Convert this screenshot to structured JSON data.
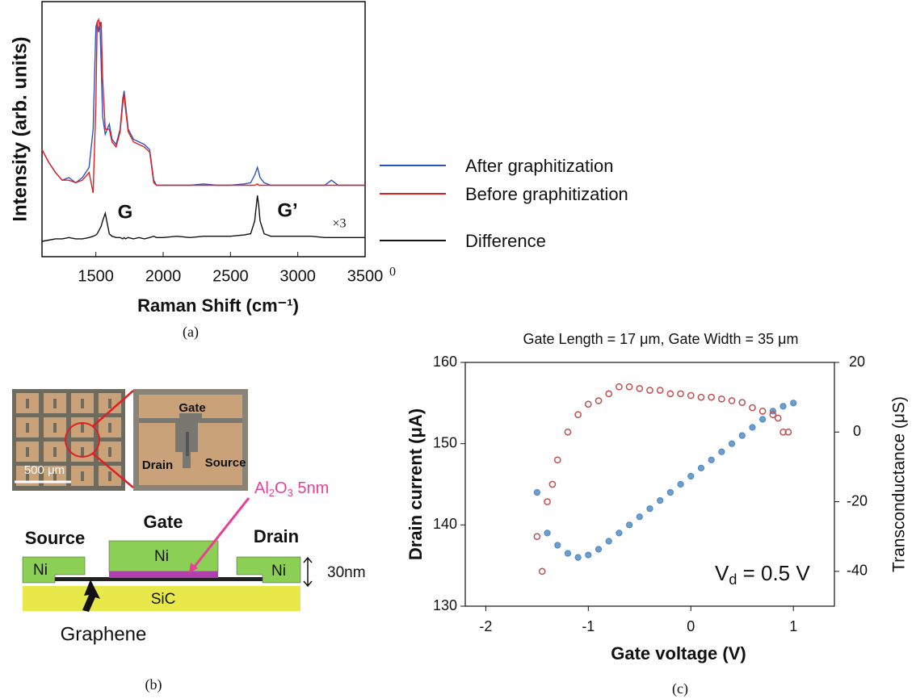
{
  "chart_data": [
    {
      "type": "line",
      "caption": "(a)",
      "x_label": "Raman Shift (cm⁻¹)",
      "y_label": "Intensity (arb. units)",
      "x": [
        1100,
        1150,
        1200,
        1250,
        1300,
        1350,
        1400,
        1450,
        1480,
        1500,
        1510,
        1520,
        1530,
        1540,
        1550,
        1570,
        1600,
        1620,
        1650,
        1680,
        1700,
        1710,
        1720,
        1740,
        1780,
        1820,
        1860,
        1900,
        1930,
        1950,
        2000,
        2100,
        2200,
        2300,
        2400,
        2500,
        2600,
        2650,
        2680,
        2700,
        2710,
        2720,
        2750,
        2800,
        2900,
        3000,
        3100,
        3200,
        3250,
        3300,
        3400,
        3500
      ],
      "xlim": [
        1100,
        3500
      ],
      "xticks": [
        1500,
        2000,
        2500,
        3000,
        3500
      ],
      "ylim": [
        0,
        100
      ],
      "series": [
        {
          "name": "After graphitization",
          "color": "#2a55c0",
          "values": [
            42,
            37,
            33,
            30,
            31,
            29,
            31,
            35,
            50,
            90,
            92,
            88,
            92,
            75,
            55,
            48,
            52,
            46,
            44,
            50,
            62,
            65,
            60,
            50,
            46,
            45,
            44,
            42,
            30,
            28,
            28,
            28,
            28,
            28.5,
            28,
            28,
            28.5,
            29,
            32,
            35,
            33,
            31,
            29,
            28,
            28,
            28,
            28,
            28,
            30,
            28,
            28,
            28
          ]
        },
        {
          "name": "Before graphitization",
          "color": "#e02020",
          "values": [
            42,
            37,
            33,
            30,
            30,
            29,
            30,
            33,
            25,
            60,
            92,
            93,
            90,
            92,
            70,
            50,
            50,
            45,
            43,
            49,
            60,
            64,
            58,
            49,
            45,
            44,
            43,
            41,
            29,
            28,
            28,
            28,
            28,
            28,
            28,
            28,
            28,
            28,
            28,
            28.5,
            28,
            28,
            28,
            28,
            28,
            28,
            28,
            28,
            28,
            28,
            28,
            28
          ]
        },
        {
          "name": "Difference",
          "color": "#111111",
          "values": [
            6,
            6.5,
            7,
            7,
            7.5,
            7,
            7,
            7.5,
            8,
            8.5,
            9,
            10,
            11,
            12,
            14,
            17,
            9,
            8,
            7.5,
            7.5,
            7,
            7.5,
            7,
            7.5,
            7,
            7.5,
            7,
            7.5,
            8,
            7.5,
            7.5,
            8,
            7.5,
            8,
            8,
            8,
            8.5,
            9,
            14,
            24,
            20,
            14,
            9,
            8,
            8,
            8,
            8,
            7.5,
            7.5,
            7.5,
            7.5,
            7.5
          ]
        }
      ],
      "annotations": [
        "G",
        "G’",
        "×3",
        "0"
      ]
    },
    {
      "type": "scatter",
      "caption": "(c)",
      "title": "Gate Length = 17 μm, Gate Width = 35 μm",
      "x_label": "Gate voltage (V)",
      "y_label": "Drain current (μA)",
      "y2_label": "Transconductance  (μS)",
      "xlim": [
        -2.2,
        1.4
      ],
      "xticks": [
        -2,
        -1,
        0,
        1
      ],
      "ylim": [
        130,
        160
      ],
      "yticks": [
        130,
        140,
        150,
        160
      ],
      "y2lim": [
        -50,
        20
      ],
      "y2ticks": [
        -40,
        -20,
        0,
        20
      ],
      "series": [
        {
          "color": "#4a86c0",
          "x": [
            -1.5,
            -1.4,
            -1.3,
            -1.2,
            -1.1,
            -1.0,
            -0.9,
            -0.8,
            -0.7,
            -0.6,
            -0.5,
            -0.4,
            -0.3,
            -0.2,
            -0.1,
            0,
            0.1,
            0.2,
            0.3,
            0.4,
            0.5,
            0.6,
            0.7,
            0.8,
            0.9,
            1.0
          ],
          "values": [
            144,
            139,
            137.5,
            136.5,
            136,
            136.3,
            137,
            138,
            139,
            140,
            141,
            142,
            143,
            144,
            145,
            146,
            147,
            148,
            149,
            150,
            151,
            152,
            153,
            154,
            154.6,
            155
          ]
        },
        {
          "color": "#c05050",
          "axis": "y2",
          "x": [
            -1.5,
            -1.45,
            -1.4,
            -1.35,
            -1.3,
            -1.2,
            -1.1,
            -1.0,
            -0.9,
            -0.8,
            -0.7,
            -0.6,
            -0.5,
            -0.4,
            -0.3,
            -0.2,
            -0.1,
            0,
            0.1,
            0.2,
            0.3,
            0.4,
            0.5,
            0.6,
            0.7,
            0.8,
            0.85,
            0.9,
            0.95
          ],
          "values": [
            -30,
            -40,
            -20,
            -15,
            -8,
            0,
            5,
            8,
            9,
            11,
            13,
            13,
            12.5,
            12,
            12,
            11,
            11,
            10.5,
            10,
            10,
            9.5,
            9,
            8.5,
            7,
            6,
            5,
            4,
            0,
            0
          ]
        }
      ],
      "annotation": [
        "V",
        "d",
        " = 0.5 V"
      ]
    }
  ],
  "diagram": {
    "caption": "(b)",
    "micrograph": {
      "gate": "Gate",
      "drain": "Drain",
      "source": "Source",
      "scale_bar": "500 μm"
    },
    "cross_section": {
      "source": "Source",
      "gate": "Gate",
      "drain": "Drain",
      "ni": [
        "Ni",
        "Ni",
        "Ni"
      ],
      "substrate": "SiC",
      "graphene": "Graphene",
      "thickness": "30nm",
      "oxide": [
        "Al",
        "2",
        "O",
        "3",
        " 5nm"
      ]
    }
  }
}
